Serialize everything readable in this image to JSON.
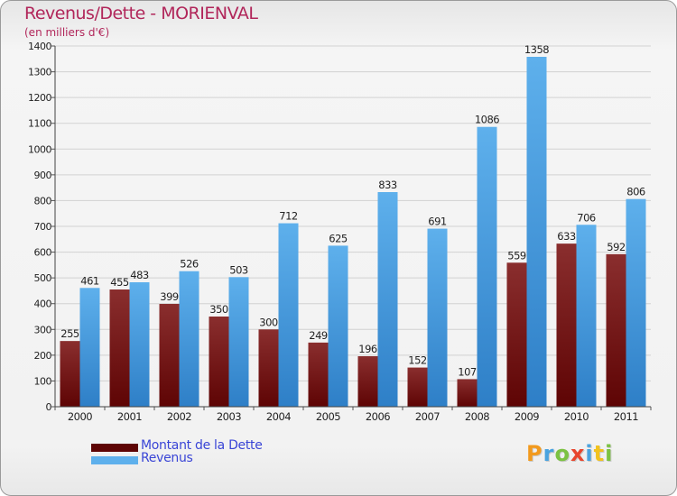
{
  "title": "Revenus/Dette - MORIENVAL",
  "subtitle": "(en milliers d'€)",
  "colors": {
    "debt_dark": "#5e0404",
    "debt_light": "#8a2e2e",
    "revenue_dark": "#2e7fc7",
    "revenue_light": "#5eb0ec",
    "title": "#b1265a",
    "legend_text": "#3a45d6"
  },
  "chart_data": {
    "type": "bar",
    "title": "Revenus/Dette - MORIENVAL",
    "ylabel": "(en milliers d'€)",
    "xlabel": "",
    "ylim": [
      0,
      1400
    ],
    "ytick_step": 100,
    "grid": true,
    "legend_position": "bottom-left",
    "categories": [
      "2000",
      "2001",
      "2002",
      "2003",
      "2004",
      "2005",
      "2006",
      "2007",
      "2008",
      "2009",
      "2010",
      "2011"
    ],
    "series": [
      {
        "name": "Montant de la Dette",
        "values": [
          255,
          455,
          399,
          350,
          300,
          249,
          196,
          152,
          107,
          559,
          633,
          592
        ]
      },
      {
        "name": "Revenus",
        "values": [
          461,
          483,
          526,
          503,
          712,
          625,
          833,
          691,
          1086,
          1358,
          706,
          806
        ]
      }
    ]
  },
  "legend": [
    {
      "label": "Montant de la Dette"
    },
    {
      "label": "Revenus"
    }
  ],
  "logo": {
    "letters": [
      "P",
      "r",
      "o",
      "x",
      "i",
      "t",
      "i"
    ]
  }
}
